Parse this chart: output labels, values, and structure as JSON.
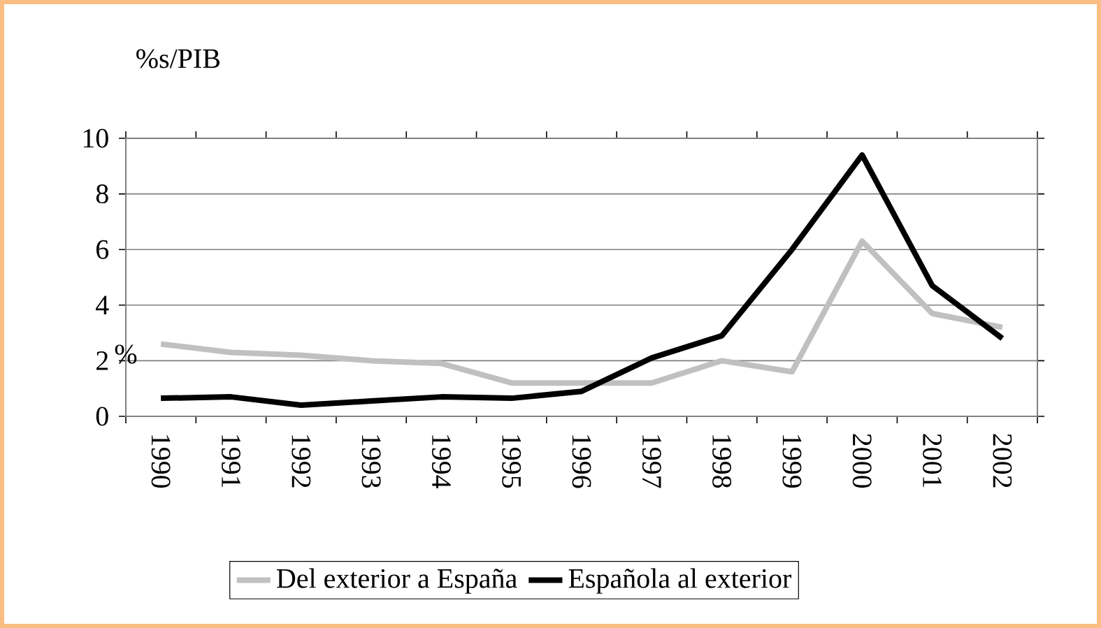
{
  "chart_data": {
    "type": "line",
    "title": "%s/PIB",
    "ylabel": "%",
    "categories": [
      "1990",
      "1991",
      "1992",
      "1993",
      "1994",
      "1995",
      "1996",
      "1997",
      "1998",
      "1999",
      "2000",
      "2001",
      "2002"
    ],
    "series": [
      {
        "name": "Del exterior a España",
        "color": "#c0c0c0",
        "values": [
          2.6,
          2.3,
          2.2,
          2.0,
          1.9,
          1.2,
          1.2,
          1.2,
          2.0,
          1.6,
          6.3,
          3.7,
          3.2
        ]
      },
      {
        "name": "Española al exterior",
        "color": "#000000",
        "values": [
          0.65,
          0.7,
          0.4,
          0.55,
          0.7,
          0.65,
          0.9,
          2.1,
          2.9,
          6.0,
          9.4,
          4.7,
          2.8
        ]
      }
    ],
    "ylim": [
      0,
      10
    ],
    "yticks": [
      0,
      2,
      4,
      6,
      8,
      10
    ],
    "grid": "y",
    "legend": "bottom",
    "line_style": "solid"
  }
}
